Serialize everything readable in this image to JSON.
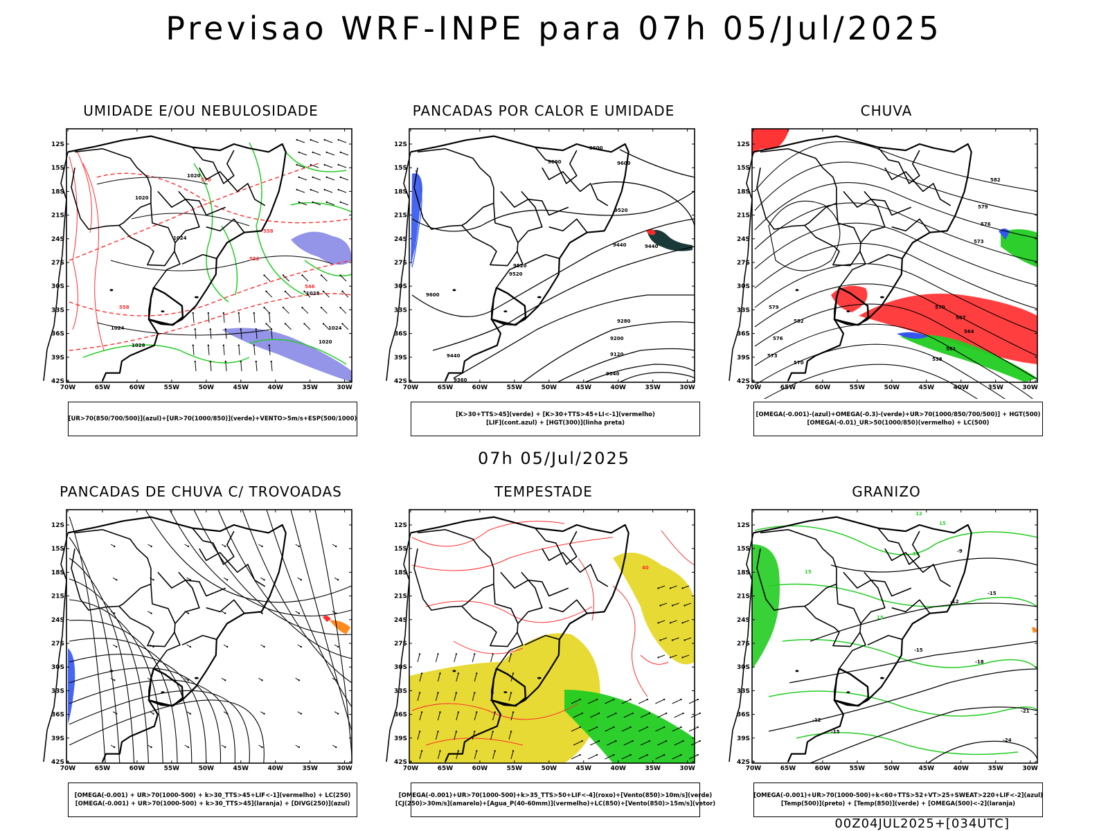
{
  "header": {
    "title": "Previsao WRF-INPE  para 07h 05/Jul/2025"
  },
  "mid_title": "07h 05/Jul/2025",
  "footer": "00Z04JUL2025+[034UTC]",
  "axes": {
    "lat_labels": [
      "12S",
      "15S",
      "18S",
      "21S",
      "24S",
      "27S",
      "30S",
      "33S",
      "36S",
      "39S",
      "42S"
    ],
    "lon_labels": [
      "70W",
      "65W",
      "60W",
      "55W",
      "50W",
      "45W",
      "40W",
      "35W",
      "30W"
    ]
  },
  "panels": [
    {
      "title": "UMIDADE E/OU NEBULOSIDADE",
      "legend": [
        "[UR>70(850/700/500)](azul)+[UR>70(1000/850)](verde)+VENTO>5m/s+ESP(500/1000)"
      ],
      "labels": [
        "1020",
        "1024",
        "1028",
        "570",
        "564",
        "558",
        "552",
        "546"
      ]
    },
    {
      "title": "PANCADAS POR CALOR E UMIDADE",
      "legend": [
        "[K>30+TTS>45](verde) + [K>30+TTS>45+LI<-1](vermelho)",
        "[LIF](cont.azul) + [HGT(300)](linha preta)"
      ],
      "labels": [
        "9600",
        "9520",
        "9440",
        "9360",
        "9280",
        "9200",
        "9120",
        "9040"
      ]
    },
    {
      "title": "CHUVA",
      "legend": [
        "[OMEGA(-0.001)-(azul)+OMEGA(-0.3)-(verde)+UR>70(1000/850/700/500)] + HGT(500)",
        "[OMEGA(-0.01)_UR>50(1000/850)(vermelho) + LC(500)"
      ],
      "labels": [
        "582",
        "579",
        "576",
        "573",
        "570",
        "567",
        "564",
        "561",
        "558"
      ]
    },
    {
      "title": "PANCADAS DE CHUVA C/ TROVOADAS",
      "legend": [
        "[OMEGA(-0.001) + UR>70(1000-500) + k>30_TTS>45+LIF<-1](vermelho) + LC(250)",
        "[OMEGA(-0.001) + UR>70(1000-500) + k>30_TTS>45](laranja) + [DIVG(250)](azul)"
      ],
      "labels": []
    },
    {
      "title": "TEMPESTADE",
      "legend": [
        "[OMEGA(-0.001)+UR>70(1000-500)+k>35_TTS>50+LIF<-4](roxo)+[Vento(850)>10m/s](verde)",
        "[CJ(250)>30m/s](amarelo)+[Agua_P(40-60mm)](vermelho)+LC(850)+[Vento(850)>15m/s](vetor)"
      ],
      "labels": [
        "40"
      ]
    },
    {
      "title": "GRANIZO",
      "legend": [
        "[OMEGA(-0.001)+UR>70(1000-500)+k<60+TTS>52+VT>25+SWEAT>220+LIF<-2](azul)",
        "[Temp(500)](preto) + [Temp(850)](verde) + [OMEGA(500)<-2](laranja)"
      ],
      "labels": [
        "-9",
        "-12",
        "-15",
        "-18",
        "-21",
        "-24",
        "12",
        "15",
        "18",
        "21"
      ]
    }
  ],
  "colors": {
    "frame": "#000000",
    "red": "#ff2a2a",
    "green": "#22cc22",
    "blue": "#3355ee",
    "yellow": "#e6d82a",
    "orange": "#ff8a1a",
    "purple": "#7070e0"
  }
}
